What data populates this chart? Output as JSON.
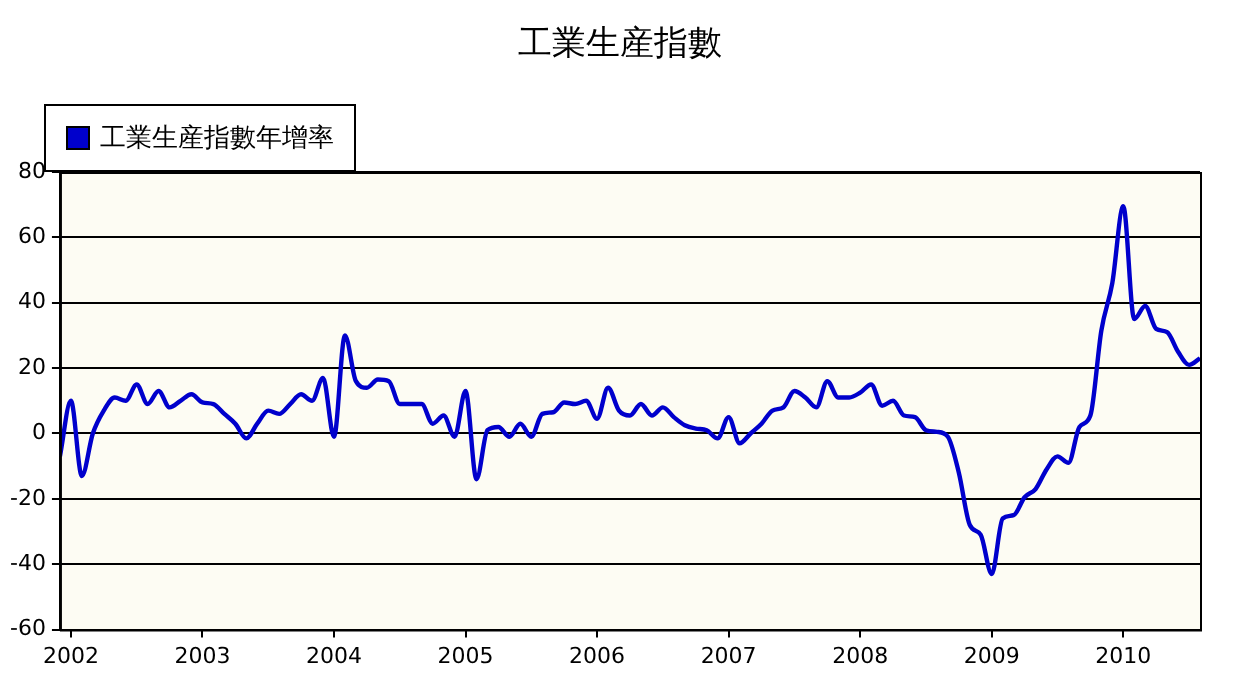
{
  "chart_data": {
    "type": "line",
    "title": "工業生産指數",
    "x": [
      "2001-12",
      "2002-01",
      "2002-02",
      "2002-03",
      "2002-04",
      "2002-05",
      "2002-06",
      "2002-07",
      "2002-08",
      "2002-09",
      "2002-10",
      "2002-11",
      "2002-12",
      "2003-01",
      "2003-02",
      "2003-03",
      "2003-04",
      "2003-05",
      "2003-06",
      "2003-07",
      "2003-08",
      "2003-09",
      "2003-10",
      "2003-11",
      "2003-12",
      "2004-01",
      "2004-02",
      "2004-03",
      "2004-04",
      "2004-05",
      "2004-06",
      "2004-07",
      "2004-08",
      "2004-09",
      "2004-10",
      "2004-11",
      "2004-12",
      "2005-01",
      "2005-02",
      "2005-03",
      "2005-04",
      "2005-05",
      "2005-06",
      "2005-07",
      "2005-08",
      "2005-09",
      "2005-10",
      "2005-11",
      "2005-12",
      "2006-01",
      "2006-02",
      "2006-03",
      "2006-04",
      "2006-05",
      "2006-06",
      "2006-07",
      "2006-08",
      "2006-09",
      "2006-10",
      "2006-11",
      "2006-12",
      "2007-01",
      "2007-02",
      "2007-03",
      "2007-04",
      "2007-05",
      "2007-06",
      "2007-07",
      "2007-08",
      "2007-09",
      "2007-10",
      "2007-11",
      "2007-12",
      "2008-01",
      "2008-02",
      "2008-03",
      "2008-04",
      "2008-05",
      "2008-06",
      "2008-07",
      "2008-08",
      "2008-09",
      "2008-10",
      "2008-11",
      "2008-12",
      "2009-01",
      "2009-02",
      "2009-03",
      "2009-04",
      "2009-05",
      "2009-06",
      "2009-07",
      "2009-08",
      "2009-09",
      "2009-10",
      "2009-11",
      "2009-12",
      "2010-01",
      "2010-02",
      "2010-03",
      "2010-04",
      "2010-05",
      "2010-06",
      "2010-07",
      "2010-08"
    ],
    "series": [
      {
        "name": "工業生産指數年增率",
        "color": "#0000cc",
        "values": [
          -7,
          10,
          -13,
          0,
          7,
          11,
          10,
          15,
          9,
          13,
          8,
          10,
          12,
          9.5,
          9,
          6,
          3,
          -1.5,
          3,
          7,
          6,
          9,
          12,
          10,
          17,
          -1,
          30,
          16,
          14,
          16.5,
          16,
          9,
          9,
          9,
          3,
          5.5,
          -1,
          13,
          -14,
          1,
          2,
          -1,
          3,
          -1,
          6,
          6.5,
          9.5,
          9,
          10,
          4.5,
          14,
          7,
          5.5,
          9,
          5.5,
          8,
          5,
          2.5,
          1.5,
          1,
          -1.5,
          5,
          -3,
          0,
          3,
          7,
          8,
          13,
          11,
          8,
          16,
          11,
          11,
          12.5,
          15,
          8.5,
          10,
          5.5,
          5,
          1,
          0.5,
          -1,
          -12,
          -28,
          -31,
          -43,
          -26,
          -25,
          -19.5,
          -17,
          -11,
          -7,
          -9,
          2,
          5.5,
          31.5,
          46,
          69.5,
          35,
          39,
          32,
          31,
          25,
          21,
          23
        ]
      }
    ],
    "xlim": [
      "2001-12",
      "2010-08"
    ],
    "xticks": [
      "2002",
      "2003",
      "2004",
      "2005",
      "2006",
      "2007",
      "2008",
      "2009",
      "2010"
    ],
    "ylim": [
      -60,
      80
    ],
    "yticks": [
      -60,
      -40,
      -20,
      0,
      20,
      40,
      60,
      80
    ],
    "grid": "y",
    "legend": "top left",
    "marker": "none",
    "line_style": "solid"
  }
}
